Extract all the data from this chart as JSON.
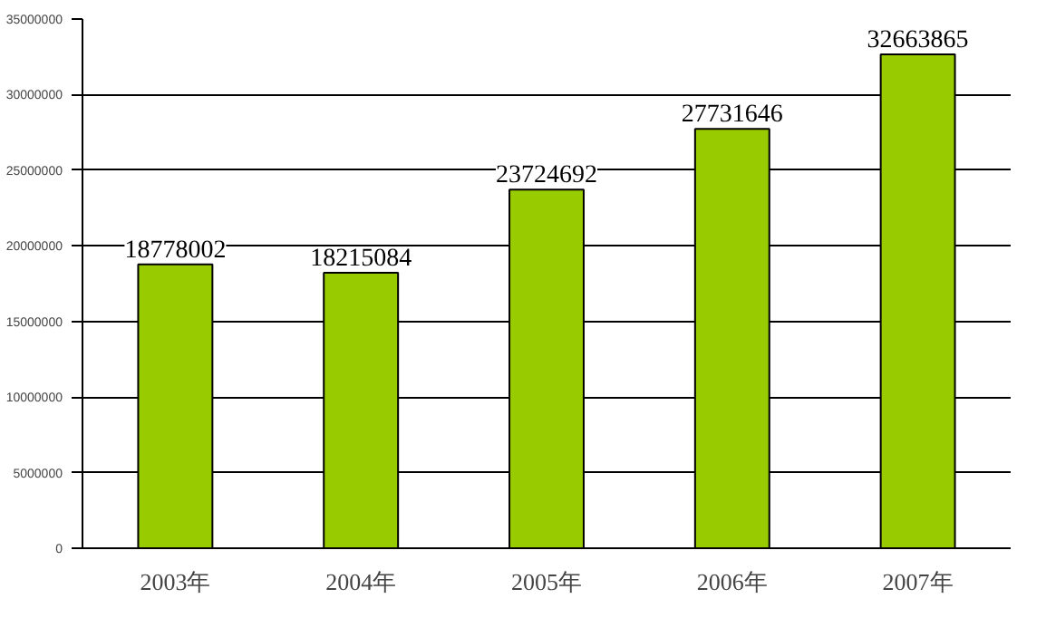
{
  "chart_data": {
    "type": "bar",
    "categories": [
      "2003年",
      "2004年",
      "2005年",
      "2006年",
      "2007年"
    ],
    "values": [
      18778002,
      18215084,
      23724692,
      27731646,
      32663865
    ],
    "color": "#99cc00",
    "ylim": [
      0,
      35000000
    ],
    "yticks": [
      0,
      5000000,
      10000000,
      15000000,
      20000000,
      25000000,
      30000000,
      35000000
    ],
    "grid": "y",
    "data_labels": true
  }
}
